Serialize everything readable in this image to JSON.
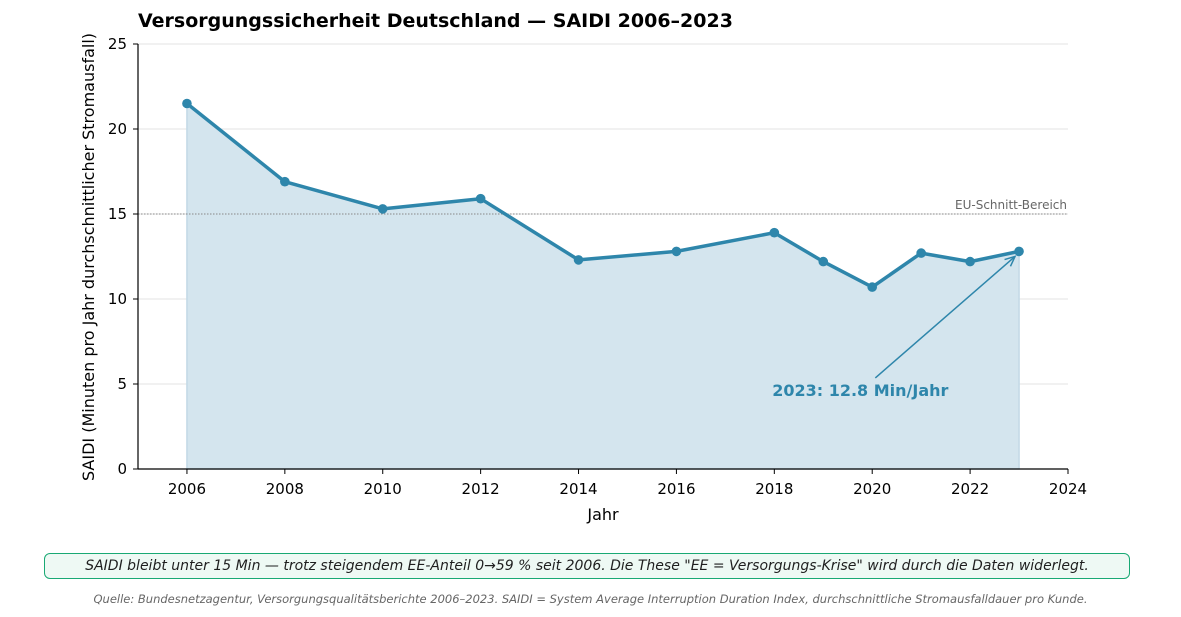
{
  "chart_data": {
    "type": "area",
    "title": "Versorgungssicherheit Deutschland — SAIDI 2006–2023",
    "xlabel": "Jahr",
    "ylabel": "SAIDI (Minuten pro Jahr durchschnittlicher Stromausfall)",
    "xlim": [
      2005,
      2024
    ],
    "ylim": [
      0,
      25
    ],
    "x_ticks": [
      2006,
      2008,
      2010,
      2012,
      2014,
      2016,
      2018,
      2020,
      2022,
      2024
    ],
    "y_ticks": [
      0,
      5,
      10,
      15,
      20,
      25
    ],
    "grid": "horizontal",
    "series": [
      {
        "x": [
          2006,
          2008,
          2010,
          2012,
          2014,
          2016,
          2018,
          2019,
          2020,
          2021,
          2022,
          2023
        ],
        "values": [
          21.5,
          16.9,
          15.3,
          15.9,
          12.3,
          12.8,
          13.9,
          12.2,
          10.7,
          12.7,
          12.2,
          12.8
        ],
        "color": "#2e86ab",
        "fill_color": "#d4e5ee"
      }
    ],
    "reference_line": {
      "y": 15,
      "label": "EU-Schnitt-Bereich",
      "color": "#888888"
    },
    "annotation": {
      "text": "2023: 12.8 Min/Jahr",
      "x": 2023,
      "y": 12.8,
      "text_x": 2019.9,
      "text_y": 4.3,
      "color": "#2e86ab"
    }
  },
  "note": "SAIDI bleibt unter 15 Min — trotz steigendem EE-Anteil 0→59 % seit 2006. Die These \"EE = Versorgungs-Krise\" wird durch die Daten widerlegt.",
  "source": "Quelle: Bundesnetzagentur, Versorgungsqualitätsberichte 2006–2023. SAIDI = System Average Interruption Duration Index, durchschnittliche Stromausfalldauer pro Kunde."
}
